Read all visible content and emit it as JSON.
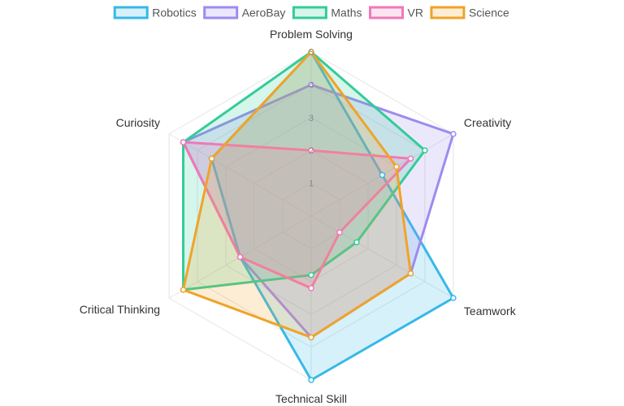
{
  "chart_data": {
    "type": "radar",
    "axes": [
      "Problem Solving",
      "Creativity",
      "Teamwork",
      "Technical Skill",
      "Critical Thinking",
      "Curiosity"
    ],
    "r_min": 0,
    "r_max": 5,
    "ticks": [
      "1",
      "2",
      "3",
      "4",
      "5"
    ],
    "grid": true,
    "legend_position": "top",
    "series": [
      {
        "name": "Robotics",
        "color": "#36b9e8",
        "values": [
          5,
          2.5,
          5,
          5,
          2.5,
          3.5
        ]
      },
      {
        "name": "AeroBay",
        "color": "#9f8af0",
        "values": [
          4,
          5,
          3.5,
          3.7,
          2.5,
          4.5
        ]
      },
      {
        "name": "Maths",
        "color": "#33cc99",
        "values": [
          5,
          4,
          1.6,
          1.8,
          4.5,
          4.5
        ]
      },
      {
        "name": "VR",
        "color": "#f078b8",
        "values": [
          2,
          3.5,
          1,
          2.2,
          2.5,
          4.5
        ]
      },
      {
        "name": "Science",
        "color": "#f0a328",
        "values": [
          5,
          3,
          3.5,
          3.7,
          4.5,
          3.5
        ]
      }
    ]
  }
}
